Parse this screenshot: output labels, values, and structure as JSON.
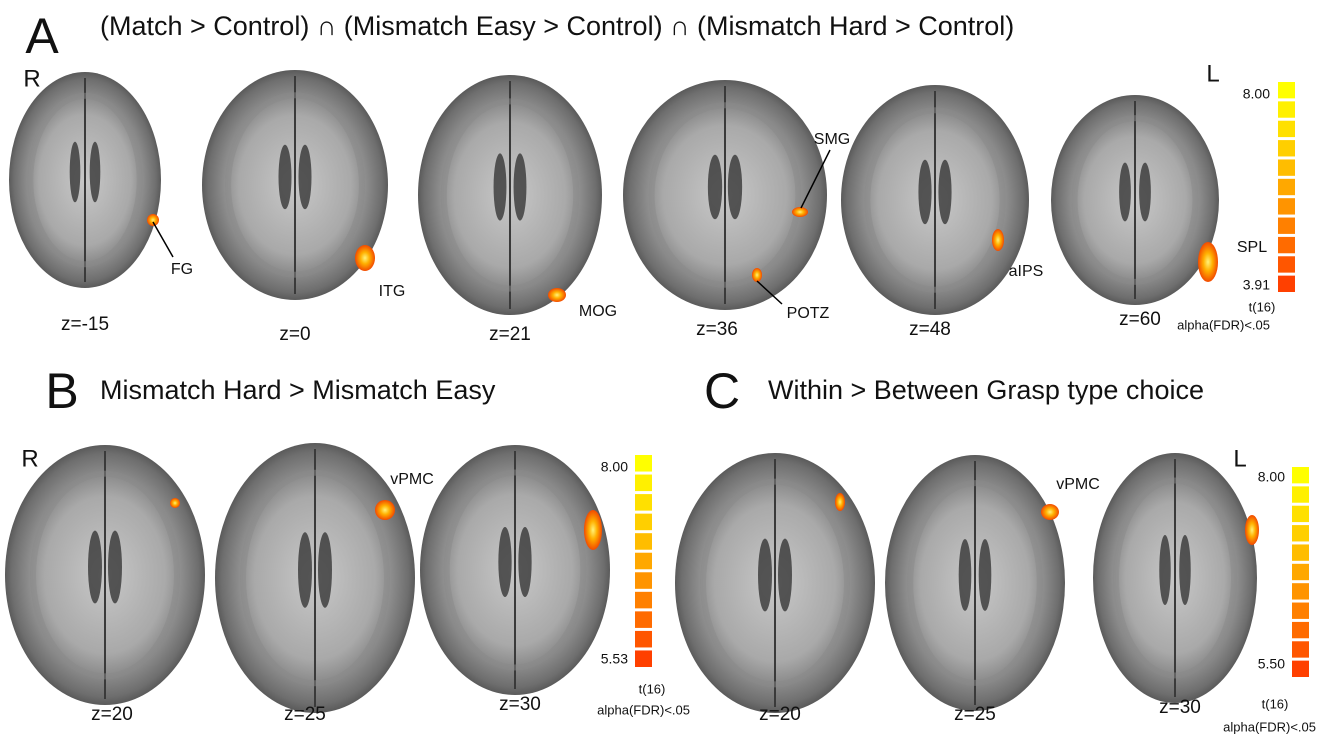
{
  "panels": [
    {
      "letter": "A",
      "title": "(Match > Control) ∩ (Mismatch Easy > Control) ∩ (Mismatch Hard > Control)",
      "side_labels": [
        "R",
        "L"
      ],
      "slices": [
        "z=-15",
        "z=0",
        "z=21",
        "z=36",
        "z=48",
        "z=60"
      ],
      "regions": [
        "FG",
        "ITG",
        "MOG",
        "SMG",
        "POTZ",
        "aIPS",
        "SPL"
      ],
      "colorbar": {
        "max": "8.00",
        "min": "3.91",
        "stat": "t(16)",
        "threshold": "alpha(FDR)<.05"
      }
    },
    {
      "letter": "B",
      "title": "Mismatch Hard > Mismatch Easy",
      "side_labels": [
        "R"
      ],
      "slices": [
        "z=20",
        "z=25",
        "z=30"
      ],
      "regions": [
        "vPMC"
      ],
      "colorbar": {
        "max": "8.00",
        "min": "5.53",
        "stat": "t(16)",
        "threshold": "alpha(FDR)<.05"
      }
    },
    {
      "letter": "C",
      "title": "Within > Between Grasp type choice",
      "side_labels": [
        "L"
      ],
      "slices": [
        "z=20",
        "z=25",
        "z=30"
      ],
      "regions": [
        "vPMC"
      ],
      "colorbar": {
        "max": "8.00",
        "min": "5.50",
        "stat": "t(16)",
        "threshold": "alpha(FDR)<.05"
      }
    }
  ]
}
